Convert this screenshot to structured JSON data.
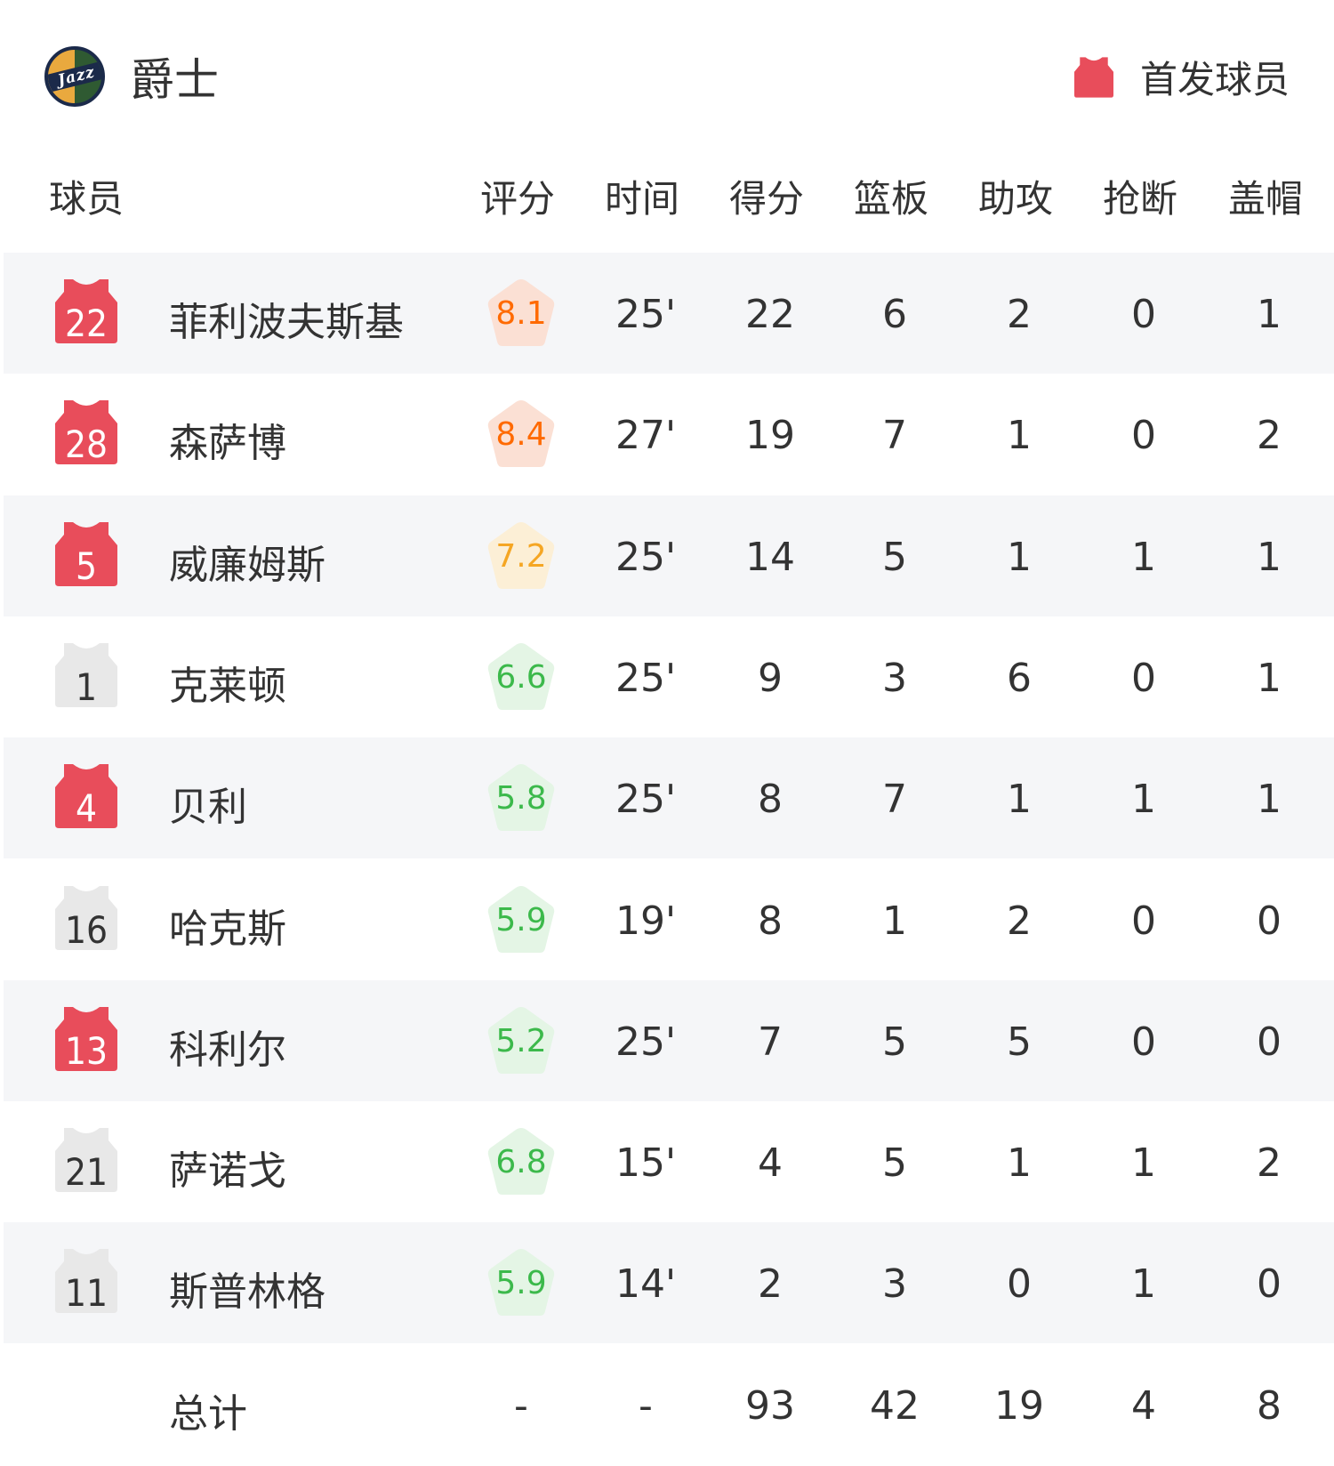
{
  "team": {
    "name": "爵士",
    "logo_text": "Jazz"
  },
  "legend": {
    "label": "首发球员",
    "icon": "jersey-icon",
    "color": "#e84d5b"
  },
  "columns": [
    "球员",
    "评分",
    "时间",
    "得分",
    "篮板",
    "助攻",
    "抢断",
    "盖帽"
  ],
  "colors": {
    "starter": "#e84d5b",
    "bench": "#e8e8e8",
    "rating_orange": "#ff6a00",
    "rating_yellow": "#f5a623",
    "rating_green": "#3cb94b"
  },
  "players": [
    {
      "number": "22",
      "name": "菲利波夫斯基",
      "rating": "8.1",
      "tier": "orange",
      "starter": true,
      "min": "25'",
      "pts": "22",
      "reb": "6",
      "ast": "2",
      "stl": "0",
      "blk": "1"
    },
    {
      "number": "28",
      "name": "森萨博",
      "rating": "8.4",
      "tier": "orange",
      "starter": true,
      "min": "27'",
      "pts": "19",
      "reb": "7",
      "ast": "1",
      "stl": "0",
      "blk": "2"
    },
    {
      "number": "5",
      "name": "威廉姆斯",
      "rating": "7.2",
      "tier": "yellow",
      "starter": true,
      "min": "25'",
      "pts": "14",
      "reb": "5",
      "ast": "1",
      "stl": "1",
      "blk": "1"
    },
    {
      "number": "1",
      "name": "克莱顿",
      "rating": "6.6",
      "tier": "green",
      "starter": false,
      "min": "25'",
      "pts": "9",
      "reb": "3",
      "ast": "6",
      "stl": "0",
      "blk": "1"
    },
    {
      "number": "4",
      "name": "贝利",
      "rating": "5.8",
      "tier": "green",
      "starter": true,
      "min": "25'",
      "pts": "8",
      "reb": "7",
      "ast": "1",
      "stl": "1",
      "blk": "1"
    },
    {
      "number": "16",
      "name": "哈克斯",
      "rating": "5.9",
      "tier": "green",
      "starter": false,
      "min": "19'",
      "pts": "8",
      "reb": "1",
      "ast": "2",
      "stl": "0",
      "blk": "0"
    },
    {
      "number": "13",
      "name": "科利尔",
      "rating": "5.2",
      "tier": "green",
      "starter": true,
      "min": "25'",
      "pts": "7",
      "reb": "5",
      "ast": "5",
      "stl": "0",
      "blk": "0"
    },
    {
      "number": "21",
      "name": "萨诺戈",
      "rating": "6.8",
      "tier": "green",
      "starter": false,
      "min": "15'",
      "pts": "4",
      "reb": "5",
      "ast": "1",
      "stl": "1",
      "blk": "2"
    },
    {
      "number": "11",
      "name": "斯普林格",
      "rating": "5.9",
      "tier": "green",
      "starter": false,
      "min": "14'",
      "pts": "2",
      "reb": "3",
      "ast": "0",
      "stl": "1",
      "blk": "0"
    }
  ],
  "totals": {
    "label": "总计",
    "rating": "-",
    "min": "-",
    "pts": "93",
    "reb": "42",
    "ast": "19",
    "stl": "4",
    "blk": "8"
  }
}
